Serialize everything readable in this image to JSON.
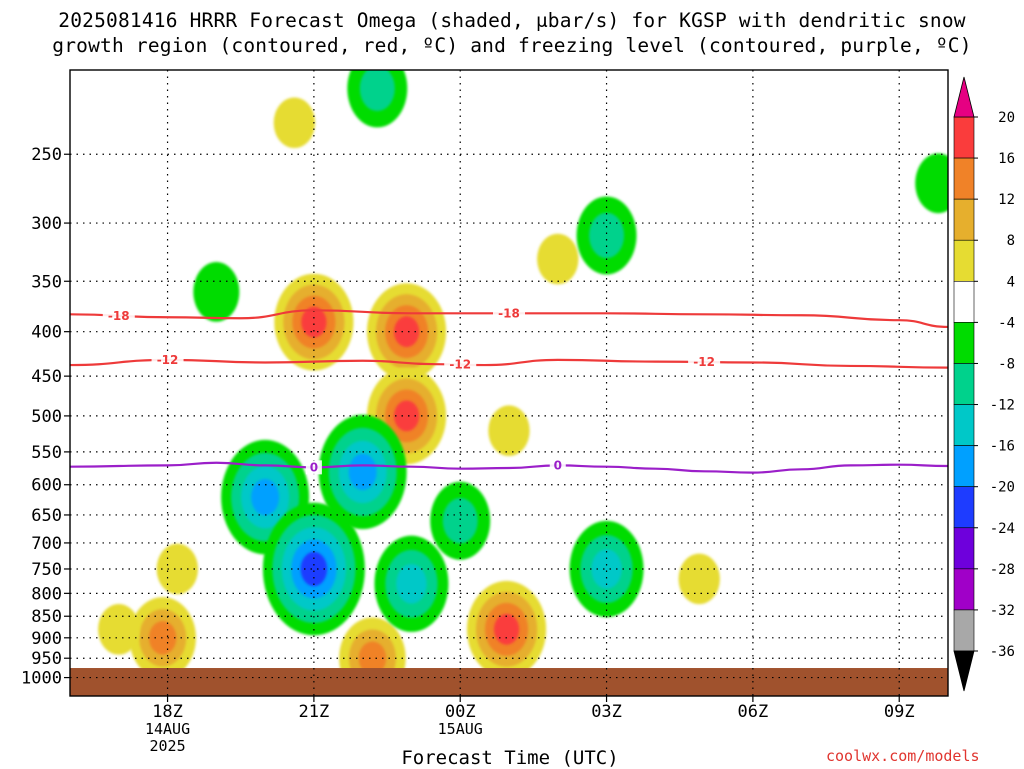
{
  "title": {
    "line1": "2025081416 HRRR Forecast Omega (shaded, μbar/s) for KGSP with dendritic snow",
    "line2": "growth region (contoured, red, ºC) and freezing level (contoured, purple, ºC)"
  },
  "watermark": "coolwx.com/models",
  "chart_data": {
    "type": "heatmap",
    "title": "2025081416 HRRR Forecast Omega (shaded, μbar/s) for KGSP with dendritic snow growth region (contoured, red, ºC) and freezing level (contoured, purple, ºC)",
    "xlabel": "Forecast Time (UTC)",
    "ylabel": "",
    "x_units": "hours since 2025-08-14 16Z",
    "xlim": [
      0,
      18
    ],
    "ylim": [
      1050,
      200
    ],
    "y_scale": "log-pressure (inverted)",
    "grid": true,
    "x_ticks": [
      {
        "x": 2,
        "label": "18Z",
        "sub": [
          "14AUG",
          "2025"
        ]
      },
      {
        "x": 5,
        "label": "21Z",
        "sub": []
      },
      {
        "x": 8,
        "label": "00Z",
        "sub": [
          "15AUG"
        ]
      },
      {
        "x": 11,
        "label": "03Z",
        "sub": []
      },
      {
        "x": 14,
        "label": "06Z",
        "sub": []
      },
      {
        "x": 17,
        "label": "09Z",
        "sub": []
      }
    ],
    "y_ticks": [
      250,
      300,
      350,
      400,
      450,
      500,
      550,
      600,
      650,
      700,
      750,
      800,
      850,
      900,
      950,
      1000
    ],
    "colorbar": {
      "levels": [
        -36,
        -32,
        -28,
        -24,
        -20,
        -16,
        -12,
        -8,
        -4,
        4,
        8,
        12,
        16,
        20
      ],
      "colors": [
        "#000000",
        "#a8a8a8",
        "#a000c8",
        "#6e00dc",
        "#1e3cff",
        "#00a0ff",
        "#00c8c8",
        "#00d28c",
        "#00dc00",
        "#ffffff",
        "#e6dc32",
        "#e6af2d",
        "#f08228",
        "#fa3c3c",
        "#e60082"
      ],
      "labels": [
        "-36",
        "-32",
        "-28",
        "-24",
        "-20",
        "-16",
        "-12",
        "-8",
        "-4",
        "4",
        "8",
        "12",
        "16",
        "20"
      ]
    },
    "omega_features": [
      {
        "x": 1.9,
        "p": 900,
        "value": 12
      },
      {
        "x": 1.0,
        "p": 880,
        "value": 4
      },
      {
        "x": 2.2,
        "p": 750,
        "value": 4
      },
      {
        "x": 4.6,
        "p": 230,
        "value": 4
      },
      {
        "x": 5.0,
        "p": 390,
        "value": 16
      },
      {
        "x": 6.9,
        "p": 400,
        "value": 16
      },
      {
        "x": 6.9,
        "p": 500,
        "value": 16
      },
      {
        "x": 6.2,
        "p": 950,
        "value": 12
      },
      {
        "x": 8.95,
        "p": 880,
        "value": 16
      },
      {
        "x": 9.0,
        "p": 520,
        "value": 4
      },
      {
        "x": 10.0,
        "p": 330,
        "value": 4
      },
      {
        "x": 12.9,
        "p": 770,
        "value": 4
      },
      {
        "x": 4.0,
        "p": 620,
        "value": -16
      },
      {
        "x": 5.0,
        "p": 750,
        "value": -20
      },
      {
        "x": 6.0,
        "p": 580,
        "value": -16
      },
      {
        "x": 7.0,
        "p": 780,
        "value": -12
      },
      {
        "x": 8.0,
        "p": 660,
        "value": -8
      },
      {
        "x": 11.0,
        "p": 750,
        "value": -12
      },
      {
        "x": 11.0,
        "p": 310,
        "value": -8
      },
      {
        "x": 6.3,
        "p": 210,
        "value": -8
      },
      {
        "x": 17.8,
        "p": 270,
        "value": -4
      },
      {
        "x": 3.0,
        "p": 360,
        "value": -4
      }
    ],
    "series": [
      {
        "name": "-18",
        "kind": "dgz",
        "label_x": [
          1.0,
          9.0
        ],
        "x": [
          0,
          2,
          3.5,
          5,
          7,
          9,
          11,
          13,
          15,
          17,
          18
        ],
        "p": [
          382,
          385,
          386,
          378,
          381,
          381,
          381,
          382,
          383,
          388,
          395
        ]
      },
      {
        "name": "-12",
        "kind": "dgz",
        "label_x": [
          2.0,
          8.0,
          13.0
        ],
        "x": [
          0,
          2,
          4,
          6,
          7.5,
          8.5,
          10,
          12,
          14,
          16,
          18
        ],
        "p": [
          437,
          431,
          434,
          432,
          436,
          437,
          431,
          433,
          434,
          438,
          440
        ]
      },
      {
        "name": "0",
        "kind": "freezing",
        "label_x": [
          5.0,
          10.0
        ],
        "x": [
          0,
          2,
          3,
          4,
          5,
          6,
          7,
          8,
          9,
          10,
          11,
          12,
          13,
          14,
          15,
          16,
          17,
          18
        ],
        "p": [
          572,
          570,
          566,
          570,
          573,
          570,
          572,
          575,
          574,
          570,
          572,
          575,
          579,
          581,
          576,
          570,
          569,
          571
        ]
      }
    ],
    "terrain_top_p": 975
  }
}
